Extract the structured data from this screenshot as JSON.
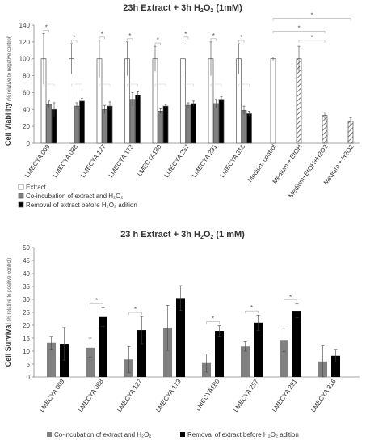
{
  "chart_data": [
    {
      "type": "bar",
      "title": "23h Extract + 3h H",
      "title_sub": "2",
      "title_mid": "O",
      "title_sub2": "2",
      "title_end": " (1mM)",
      "ylabel": "Cell Viability",
      "ylabel_sub": " (% relative to negative control)",
      "ylim": [
        0,
        140
      ],
      "yticks": [
        0,
        20,
        40,
        60,
        80,
        100,
        120,
        140
      ],
      "grid": false,
      "legend_position": "bottom-left",
      "categories": [
        "LMECYA 009",
        "LMECYA 088",
        "LMECYA 127",
        "LMECYA 173",
        "LMECYA180",
        "LMECYA 257",
        "LMECYA 291",
        "LMECYA 316"
      ],
      "series": [
        {
          "name": "Extract",
          "color": "#ffffff",
          "values": [
            100,
            100,
            100,
            100,
            100,
            100,
            100,
            100
          ],
          "errors": [
            30,
            18,
            22,
            20,
            15,
            22,
            20,
            18
          ]
        },
        {
          "name": "Co-incubation of extract and H2O2",
          "color": "#808080",
          "values": [
            46,
            44,
            40,
            52,
            38,
            45,
            47,
            39
          ],
          "errors": [
            4,
            4,
            5,
            8,
            3,
            3,
            5,
            5
          ]
        },
        {
          "name": "Removal of extract before H2O2 adition",
          "color": "#000000",
          "values": [
            40,
            50,
            44,
            57,
            44,
            47,
            52,
            35
          ],
          "errors": [
            8,
            3,
            5,
            4,
            2,
            3,
            3,
            3
          ]
        }
      ],
      "controls": {
        "categories": [
          "Medium control",
          "Medium + EtOH",
          "Medium+EtOH+H2O2",
          "Medium + H2O2"
        ],
        "values": [
          100,
          100,
          33,
          26
        ],
        "errors": [
          2,
          15,
          4,
          4
        ],
        "fills": [
          "plain",
          "hatched",
          "hatched",
          "hatched"
        ]
      },
      "significance": "*"
    },
    {
      "type": "bar",
      "title": "23 h Extract + 3h  H",
      "title_sub": "2",
      "title_mid": "O",
      "title_sub2": "2",
      "title_end": " (1 mM)",
      "ylabel": "Cell Survival",
      "ylabel_sub": " (% relative to positive  control)",
      "ylim": [
        0,
        50
      ],
      "yticks": [
        0,
        5,
        10,
        15,
        20,
        25,
        30,
        35,
        40,
        45,
        50
      ],
      "grid": false,
      "legend_position": "bottom",
      "categories": [
        "LMECYA 009",
        "LMECYA 088",
        "LMECYA 127",
        "LMECYA 173",
        "LMECYA180",
        "LMECYA 257",
        "LMECYA 291",
        "LMECYA 316"
      ],
      "series": [
        {
          "name": "Co-incubation of extract and H2O2",
          "color": "#808080",
          "values": [
            13.2,
            11.3,
            6.8,
            19.0,
            5.4,
            11.8,
            14.3,
            6.0
          ],
          "errors": [
            2.5,
            3.7,
            5.0,
            8.7,
            3.5,
            1.8,
            4.5,
            6.0
          ]
        },
        {
          "name": "Removal of extract before H2O2 adition",
          "color": "#000000",
          "values": [
            12.8,
            23.2,
            18.1,
            30.5,
            17.8,
            21.0,
            25.6,
            8.2
          ],
          "errors": [
            6.3,
            3.6,
            5.3,
            4.8,
            2.0,
            3.0,
            2.6,
            2.5
          ]
        }
      ],
      "significance": "*"
    }
  ]
}
